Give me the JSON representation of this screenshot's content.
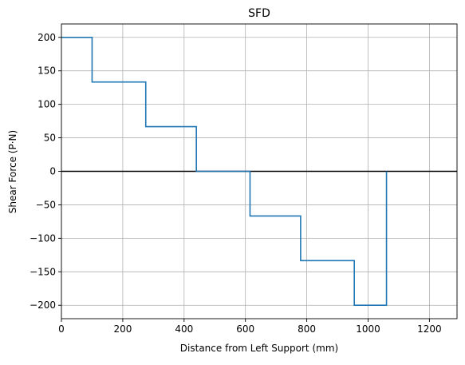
{
  "chart_data": {
    "type": "line",
    "title": "SFD",
    "xlabel": "Distance from Left Support (mm)",
    "ylabel": "Shear Force (P·N)",
    "xlim": [
      0,
      1290
    ],
    "ylim": [
      -220,
      220
    ],
    "xticks": [
      0,
      200,
      400,
      600,
      800,
      1000,
      1200
    ],
    "yticks": [
      -200,
      -150,
      -100,
      -50,
      0,
      50,
      100,
      150,
      200
    ],
    "xtick_labels": [
      "0",
      "200",
      "400",
      "600",
      "800",
      "1000",
      "1200"
    ],
    "ytick_labels": [
      "−200",
      "−150",
      "−100",
      "−50",
      "0",
      "50",
      "100",
      "150",
      "200"
    ],
    "grid": true,
    "zero_line": {
      "y": 0,
      "color": "#000000"
    },
    "series": [
      {
        "color": "#1f77b4",
        "step": true,
        "x": [
          0,
          100,
          100,
          275,
          275,
          440,
          440,
          615,
          615,
          780,
          780,
          955,
          955,
          1060,
          1060
        ],
        "y": [
          200,
          200,
          133.33,
          133.33,
          66.67,
          66.67,
          0,
          0,
          -66.67,
          -66.67,
          -133.33,
          -133.33,
          -200,
          -200,
          0
        ]
      }
    ]
  }
}
